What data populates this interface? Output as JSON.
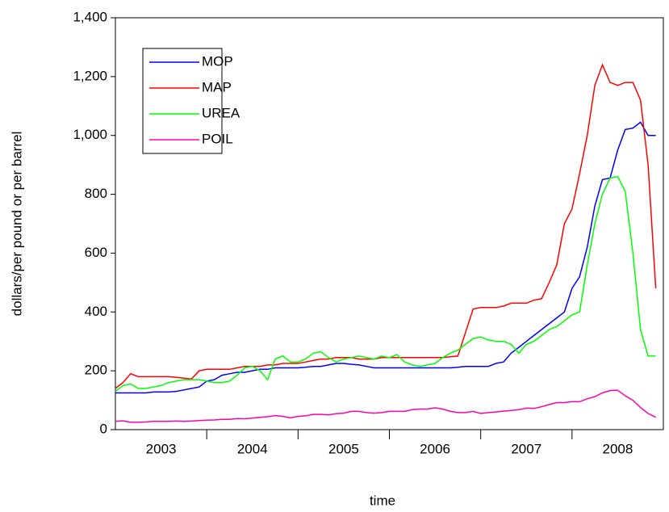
{
  "chart_data": {
    "type": "line",
    "xlabel": "time",
    "ylabel": "dollars/per pound or per barrel",
    "xlim": [
      2003,
      2009
    ],
    "xticks": [
      {
        "value": 2003.5,
        "label": "2003"
      },
      {
        "value": 2004.5,
        "label": "2004"
      },
      {
        "value": 2005.5,
        "label": "2005"
      },
      {
        "value": 2006.5,
        "label": "2006"
      },
      {
        "value": 2007.5,
        "label": "2007"
      },
      {
        "value": 2008.5,
        "label": "2008"
      }
    ],
    "x_tick_marks": [
      2004,
      2005,
      2006,
      2007,
      2008
    ],
    "ylim": [
      0,
      1400
    ],
    "yticks": [
      0,
      200,
      400,
      600,
      800,
      {
        "value": 1000,
        "label": "1,000"
      },
      {
        "value": 1200,
        "label": "1,200"
      },
      {
        "value": 1400,
        "label": "1,400"
      }
    ],
    "legend": "upper left",
    "x": [
      2003,
      2003.083,
      2003.167,
      2003.25,
      2003.333,
      2003.417,
      2003.5,
      2003.583,
      2003.667,
      2003.75,
      2003.833,
      2003.917,
      2004,
      2004.083,
      2004.167,
      2004.25,
      2004.333,
      2004.417,
      2004.5,
      2004.583,
      2004.667,
      2004.75,
      2004.833,
      2004.917,
      2005,
      2005.083,
      2005.167,
      2005.25,
      2005.333,
      2005.417,
      2005.5,
      2005.583,
      2005.667,
      2005.75,
      2005.833,
      2005.917,
      2006,
      2006.083,
      2006.167,
      2006.25,
      2006.333,
      2006.417,
      2006.5,
      2006.583,
      2006.667,
      2006.75,
      2006.833,
      2006.917,
      2007,
      2007.083,
      2007.167,
      2007.25,
      2007.333,
      2007.417,
      2007.5,
      2007.583,
      2007.667,
      2007.75,
      2007.833,
      2007.917,
      2008,
      2008.083,
      2008.167,
      2008.25,
      2008.333,
      2008.417,
      2008.5,
      2008.583,
      2008.667,
      2008.75,
      2008.833,
      2008.917
    ],
    "series": [
      {
        "name": "MOP",
        "color": "#0000ff",
        "values": [
          125,
          125,
          125,
          125,
          125,
          128,
          128,
          128,
          130,
          135,
          140,
          145,
          165,
          170,
          185,
          190,
          195,
          195,
          200,
          205,
          205,
          210,
          210,
          210,
          210,
          212,
          215,
          215,
          220,
          225,
          225,
          222,
          220,
          215,
          210,
          210,
          210,
          210,
          210,
          210,
          210,
          210,
          210,
          210,
          210,
          212,
          215,
          215,
          215,
          215,
          225,
          230,
          260,
          280,
          300,
          320,
          340,
          360,
          380,
          400,
          480,
          520,
          620,
          760,
          850,
          855,
          950,
          1020,
          1025,
          1045,
          1000,
          1000
        ]
      },
      {
        "name": "MAP",
        "color": "#ff0000",
        "values": [
          140,
          160,
          190,
          180,
          180,
          180,
          180,
          180,
          178,
          175,
          172,
          200,
          205,
          205,
          205,
          205,
          210,
          215,
          215,
          215,
          220,
          220,
          225,
          225,
          225,
          230,
          235,
          240,
          240,
          245,
          245,
          245,
          240,
          240,
          240,
          245,
          245,
          245,
          245,
          245,
          245,
          245,
          245,
          245,
          248,
          250,
          330,
          410,
          415,
          415,
          415,
          420,
          430,
          430,
          430,
          440,
          445,
          500,
          560,
          700,
          750,
          870,
          1000,
          1170,
          1240,
          1180,
          1170,
          1180,
          1180,
          1120,
          900,
          480
        ]
      },
      {
        "name": "UREA",
        "color": "#00ff00",
        "values": [
          130,
          150,
          155,
          140,
          140,
          145,
          150,
          160,
          165,
          170,
          170,
          170,
          165,
          160,
          160,
          165,
          185,
          210,
          215,
          200,
          170,
          240,
          250,
          230,
          230,
          240,
          260,
          265,
          245,
          230,
          240,
          245,
          250,
          245,
          240,
          250,
          245,
          255,
          230,
          220,
          215,
          220,
          225,
          245,
          260,
          270,
          290,
          310,
          315,
          305,
          300,
          300,
          290,
          260,
          290,
          300,
          320,
          340,
          350,
          370,
          390,
          400,
          560,
          700,
          800,
          855,
          860,
          810,
          600,
          340,
          250,
          250
        ]
      },
      {
        "name": "POIL",
        "color": "#ff00aa",
        "values": [
          28,
          30,
          25,
          25,
          26,
          28,
          28,
          28,
          29,
          28,
          29,
          31,
          32,
          33,
          35,
          35,
          38,
          37,
          39,
          42,
          44,
          48,
          45,
          40,
          45,
          47,
          52,
          52,
          50,
          54,
          56,
          62,
          62,
          58,
          56,
          58,
          62,
          62,
          62,
          68,
          70,
          70,
          74,
          70,
          62,
          58,
          58,
          62,
          55,
          58,
          60,
          63,
          65,
          68,
          73,
          72,
          78,
          85,
          92,
          92,
          95,
          95,
          105,
          112,
          125,
          133,
          134,
          115,
          100,
          75,
          55,
          42
        ]
      }
    ]
  }
}
